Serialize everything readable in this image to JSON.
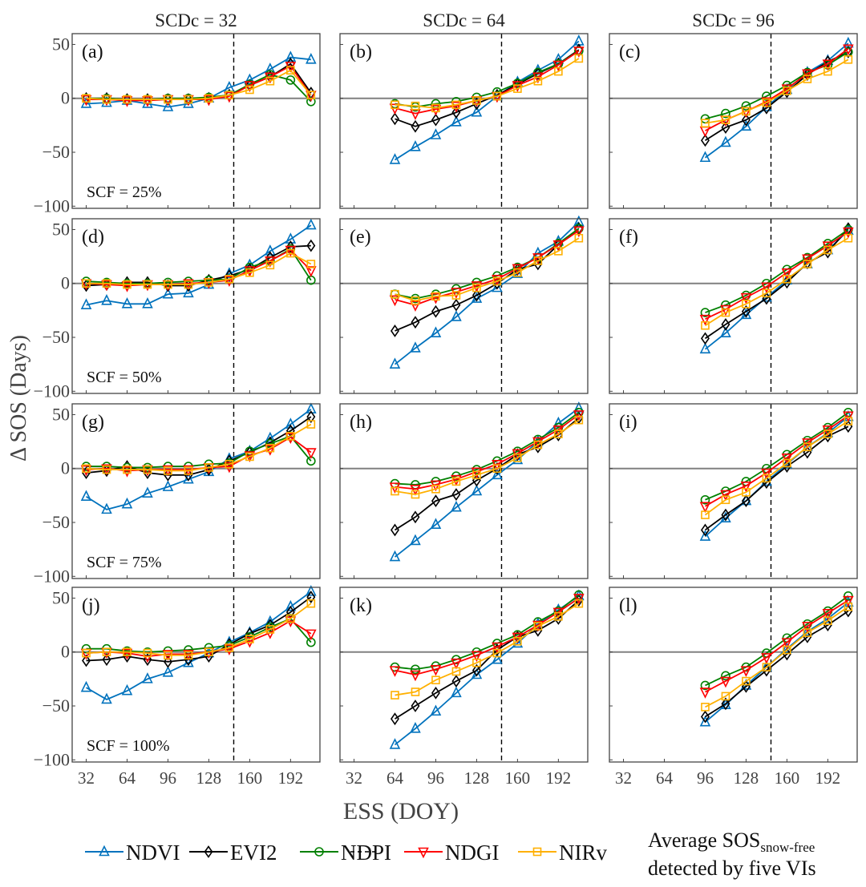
{
  "chart_data": {
    "type": "line",
    "ylabel": "Δ SOS (Days)",
    "xlabel": "ESS (DOY)",
    "xlim": [
      21,
      215
    ],
    "ylim": [
      -102,
      60
    ],
    "xticks": [
      32,
      64,
      96,
      128,
      160,
      192
    ],
    "yticks": [
      50,
      0,
      -50,
      -100
    ],
    "grid": false,
    "column_titles": [
      "SCDc = 32",
      "SCDc = 64",
      "SCDc = 96"
    ],
    "scf_labels": [
      "SCF = 25%",
      "SCF = 50%",
      "SCF = 75%",
      "SCF = 100%"
    ],
    "average_sos_snow_free_doy": 147.5,
    "ess_by_column": [
      [
        32,
        48,
        64,
        80,
        96,
        112,
        128,
        144,
        160,
        176,
        192,
        208
      ],
      [
        64,
        80,
        96,
        112,
        128,
        144,
        160,
        176,
        192,
        208
      ],
      [
        96,
        112,
        128,
        144,
        160,
        176,
        192,
        208
      ]
    ],
    "series_styles": [
      {
        "name": "NDVI",
        "color": "#0072BD",
        "marker": "triangle-up"
      },
      {
        "name": "EVI2",
        "color": "#000000",
        "marker": "diamond"
      },
      {
        "name": "NDPI",
        "color": "#008000",
        "marker": "circle"
      },
      {
        "name": "NDGI",
        "color": "#FF0000",
        "marker": "triangle-down"
      },
      {
        "name": "NIRv",
        "color": "#FFB000",
        "marker": "square"
      }
    ],
    "legend": {
      "position": "bottom",
      "items": [
        "NDVI",
        "EVI2",
        "NDPI",
        "NDGI",
        "NIRv"
      ],
      "dashed_label_main": "Average SOS",
      "dashed_label_sub": "snow-free",
      "dashed_label_line2": "detected by five VIs"
    },
    "panels": [
      {
        "label": "(a)",
        "series": {
          "NDVI": [
            -5,
            -4,
            -2,
            -5,
            -8,
            -5,
            0,
            10,
            17,
            27,
            38,
            36
          ],
          "EVI2": [
            0,
            0,
            -1,
            -1,
            -1,
            -1,
            0,
            3,
            12,
            20,
            32,
            5
          ],
          "NDPI": [
            0,
            0,
            -1,
            -1,
            0,
            0,
            1,
            3,
            13,
            22,
            17,
            -3
          ],
          "NDGI": [
            -1,
            -1,
            -2,
            -2,
            -1,
            -1,
            -1,
            2,
            12,
            20,
            30,
            3
          ],
          "NIRv": [
            0,
            -1,
            -1,
            -1,
            -1,
            -1,
            0,
            3,
            8,
            16,
            26,
            3
          ]
        }
      },
      {
        "label": "(b)",
        "series": {
          "NDVI": [
            -57,
            -45,
            -34,
            -22,
            -13,
            2,
            15,
            26,
            36,
            53
          ],
          "EVI2": [
            -19,
            -26,
            -20,
            -13,
            -5,
            3,
            13,
            23,
            32,
            45
          ],
          "NDPI": [
            -5,
            -8,
            -5,
            -3,
            1,
            6,
            14,
            24,
            32,
            44
          ],
          "NDGI": [
            -9,
            -14,
            -10,
            -7,
            -2,
            2,
            12,
            20,
            31,
            44
          ],
          "NIRv": [
            -6,
            -7,
            -9,
            -6,
            -2,
            2,
            9,
            16,
            25,
            37
          ]
        }
      },
      {
        "label": "(c)",
        "series": {
          "NDVI": [
            -55,
            -41,
            -26,
            -8,
            8,
            24,
            35,
            51
          ],
          "EVI2": [
            -39,
            -27,
            -20,
            -9,
            6,
            22,
            34,
            43
          ],
          "NDPI": [
            -19,
            -14,
            -7,
            2,
            12,
            24,
            31,
            43
          ],
          "NDGI": [
            -30,
            -20,
            -12,
            -3,
            9,
            23,
            32,
            46
          ],
          "NIRv": [
            -23,
            -20,
            -12,
            -4,
            7,
            18,
            25,
            36
          ]
        }
      },
      {
        "label": "(d)",
        "series": {
          "NDVI": [
            -20,
            -16,
            -19,
            -19,
            -10,
            -9,
            -1,
            9,
            17,
            30,
            41,
            54
          ],
          "EVI2": [
            -2,
            -1,
            1,
            1,
            -2,
            -2,
            3,
            7,
            13,
            24,
            34,
            35
          ],
          "NDPI": [
            2,
            1,
            0,
            0,
            1,
            2,
            3,
            4,
            15,
            21,
            32,
            3
          ],
          "NDGI": [
            0,
            -1,
            -2,
            -1,
            -1,
            0,
            1,
            3,
            12,
            21,
            31,
            12
          ],
          "NIRv": [
            0,
            0,
            -1,
            -1,
            -1,
            -1,
            1,
            4,
            10,
            17,
            28,
            18
          ]
        }
      },
      {
        "label": "(e)",
        "series": {
          "NDVI": [
            -75,
            -60,
            -46,
            -31,
            -14,
            -4,
            9,
            28,
            39,
            57
          ],
          "EVI2": [
            -44,
            -36,
            -26,
            -20,
            -11,
            0,
            13,
            18,
            36,
            51
          ],
          "NDPI": [
            -10,
            -14,
            -10,
            -5,
            1,
            7,
            15,
            24,
            37,
            51
          ],
          "NDGI": [
            -15,
            -20,
            -13,
            -8,
            -2,
            4,
            14,
            24,
            36,
            49
          ],
          "NIRv": [
            -10,
            -16,
            -12,
            -11,
            -4,
            2,
            10,
            21,
            30,
            42
          ]
        }
      },
      {
        "label": "(f)",
        "series": {
          "NDVI": [
            -61,
            -46,
            -29,
            -13,
            3,
            18,
            31,
            49
          ],
          "EVI2": [
            -51,
            -38,
            -26,
            -14,
            1,
            19,
            29,
            51
          ],
          "NDPI": [
            -27,
            -20,
            -11,
            0,
            13,
            24,
            37,
            50
          ],
          "NDGI": [
            -33,
            -24,
            -13,
            -3,
            10,
            23,
            35,
            48
          ],
          "NIRv": [
            -39,
            -27,
            -19,
            -9,
            4,
            18,
            31,
            42
          ]
        }
      },
      {
        "label": "(g)",
        "series": {
          "NDVI": [
            -26,
            -38,
            -33,
            -23,
            -17,
            -10,
            -3,
            9,
            16,
            28,
            41,
            55
          ],
          "EVI2": [
            -4,
            -2,
            2,
            -4,
            -6,
            -6,
            -1,
            7,
            15,
            24,
            35,
            48
          ],
          "NDPI": [
            2,
            2,
            1,
            1,
            2,
            2,
            4,
            5,
            16,
            23,
            30,
            7
          ],
          "NDGI": [
            -1,
            0,
            -2,
            -1,
            -1,
            -1,
            1,
            2,
            12,
            18,
            29,
            15
          ],
          "NIRv": [
            0,
            -1,
            -1,
            -1,
            -2,
            -2,
            1,
            4,
            11,
            19,
            30,
            41
          ]
        }
      },
      {
        "label": "(h)",
        "series": {
          "NDVI": [
            -82,
            -67,
            -52,
            -36,
            -21,
            -6,
            8,
            25,
            42,
            56
          ],
          "EVI2": [
            -57,
            -45,
            -30,
            -24,
            -11,
            0,
            13,
            20,
            31,
            47
          ],
          "NDPI": [
            -14,
            -15,
            -12,
            -7,
            -1,
            7,
            16,
            27,
            38,
            52
          ],
          "NDGI": [
            -17,
            -19,
            -15,
            -10,
            -3,
            4,
            14,
            25,
            36,
            50
          ],
          "NIRv": [
            -21,
            -24,
            -19,
            -12,
            -6,
            0,
            10,
            22,
            32,
            45
          ]
        }
      },
      {
        "label": "(i)",
        "series": {
          "NDVI": [
            -63,
            -46,
            -30,
            -12,
            4,
            20,
            33,
            48
          ],
          "EVI2": [
            -57,
            -43,
            -30,
            -13,
            2,
            15,
            30,
            39
          ],
          "NDPI": [
            -29,
            -21,
            -12,
            0,
            13,
            26,
            38,
            52
          ],
          "NDGI": [
            -35,
            -24,
            -16,
            -4,
            10,
            24,
            36,
            49
          ],
          "NIRv": [
            -43,
            -29,
            -22,
            -9,
            5,
            20,
            32,
            44
          ]
        }
      },
      {
        "label": "(j)",
        "series": {
          "NDVI": [
            -33,
            -44,
            -36,
            -25,
            -19,
            -10,
            -1,
            9,
            18,
            28,
            42,
            56
          ],
          "EVI2": [
            -8,
            -7,
            -4,
            -7,
            -9,
            -7,
            -4,
            7,
            17,
            25,
            37,
            51
          ],
          "NDPI": [
            3,
            3,
            1,
            0,
            1,
            2,
            4,
            6,
            14,
            23,
            31,
            9
          ],
          "NDGI": [
            -1,
            0,
            -1,
            -4,
            -2,
            -2,
            0,
            3,
            10,
            18,
            29,
            17
          ],
          "NIRv": [
            -1,
            0,
            0,
            -1,
            -3,
            -3,
            0,
            4,
            12,
            21,
            31,
            45
          ]
        }
      },
      {
        "label": "(k)",
        "series": {
          "NDVI": [
            -86,
            -71,
            -55,
            -38,
            -21,
            -7,
            8,
            26,
            39,
            52
          ],
          "EVI2": [
            -62,
            -50,
            -38,
            -27,
            -17,
            2,
            14,
            20,
            31,
            48
          ],
          "NDPI": [
            -14,
            -16,
            -13,
            -7,
            0,
            8,
            16,
            28,
            38,
            53
          ],
          "NDGI": [
            -17,
            -21,
            -16,
            -10,
            -3,
            5,
            14,
            25,
            37,
            50
          ],
          "NIRv": [
            -40,
            -37,
            -26,
            -18,
            -10,
            -1,
            10,
            24,
            33,
            45
          ]
        }
      },
      {
        "label": "(l)",
        "series": {
          "NDVI": [
            -65,
            -49,
            -31,
            -14,
            3,
            19,
            31,
            46
          ],
          "EVI2": [
            -60,
            -48,
            -32,
            -17,
            -2,
            14,
            25,
            38
          ],
          "NDPI": [
            -31,
            -22,
            -14,
            -1,
            13,
            26,
            38,
            52
          ],
          "NDGI": [
            -37,
            -27,
            -17,
            -5,
            9,
            24,
            36,
            48
          ],
          "NIRv": [
            -51,
            -41,
            -27,
            -14,
            2,
            18,
            29,
            42
          ]
        }
      }
    ]
  }
}
